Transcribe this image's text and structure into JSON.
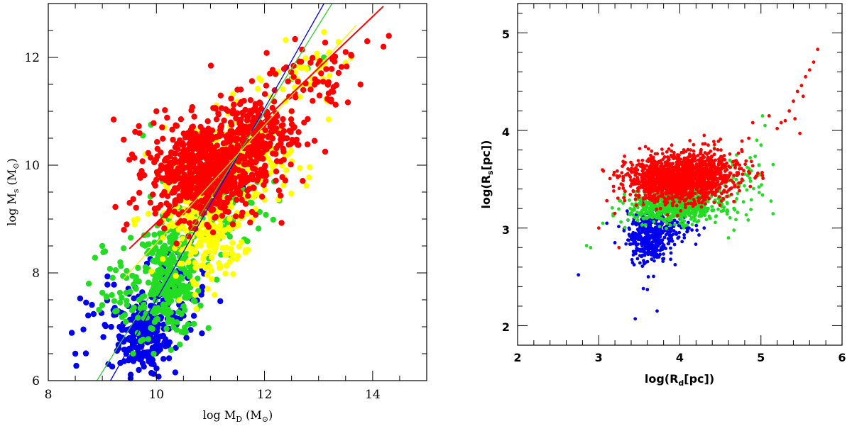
{
  "colors": {
    "red": "#ff0000",
    "yellow": "#ffff00",
    "green": "#22dd22",
    "blue": "#0000ee",
    "fit_green": "#33cc33",
    "fit_yellow": "#ffee00"
  },
  "chart_data": [
    {
      "type": "scatter",
      "title": "",
      "xlabel": "log M_D (M_⊙)",
      "xlabel_parts": {
        "pre": "log M",
        "sub": "D",
        "post": " (M",
        "sun": "⊙",
        "close": ")"
      },
      "ylabel": "log M_s (M_⊙)",
      "ylabel_parts": {
        "pre": "log M",
        "sub": "s",
        "post": " (M",
        "sun": "⊙",
        "close": ")"
      },
      "xlim": [
        8,
        15
      ],
      "ylim": [
        6,
        13
      ],
      "xticks": [
        8,
        10,
        12,
        14
      ],
      "xtick_labels": [
        "8",
        "10",
        "12",
        "14"
      ],
      "yticks": [
        6,
        8,
        10,
        12
      ],
      "ytick_labels": [
        "6",
        "8",
        "10",
        "12"
      ],
      "minor_step": 0.5,
      "series": [
        {
          "name": "blue",
          "color_key": "blue",
          "clusters": [
            {
              "cx": 9.75,
              "cy": 6.85,
              "sx": 0.22,
              "sy": 0.35,
              "n": 220
            },
            {
              "cx": 10.35,
              "cy": 7.6,
              "sx": 0.3,
              "sy": 0.45,
              "n": 80
            },
            {
              "cx": 9.0,
              "cy": 7.0,
              "sx": 0.35,
              "sy": 0.4,
              "n": 25
            }
          ],
          "points": [
            [
              8.5,
              6.5
            ],
            [
              8.65,
              6.95
            ],
            [
              8.7,
              7.45
            ],
            [
              9.95,
              6.3
            ],
            [
              11.6,
              9.6
            ],
            [
              12.3,
              10.4
            ],
            [
              11.8,
              10.0
            ]
          ]
        },
        {
          "name": "green",
          "color_key": "green",
          "clusters": [
            {
              "cx": 10.25,
              "cy": 7.9,
              "sx": 0.3,
              "sy": 0.55,
              "n": 300
            },
            {
              "cx": 11.2,
              "cy": 9.3,
              "sx": 0.45,
              "sy": 0.5,
              "n": 110
            },
            {
              "cx": 9.3,
              "cy": 7.6,
              "sx": 0.35,
              "sy": 0.45,
              "n": 45
            }
          ],
          "points": [
            [
              9.0,
              8.5
            ],
            [
              9.05,
              8.4
            ],
            [
              9.75,
              10.55
            ],
            [
              9.9,
              10.75
            ],
            [
              12.5,
              11.6
            ],
            [
              12.8,
              11.8
            ],
            [
              13.1,
              12.0
            ],
            [
              8.75,
              7.8
            ],
            [
              9.95,
              6.5
            ]
          ]
        },
        {
          "name": "yellow",
          "color_key": "yellow",
          "clusters": [
            {
              "cx": 10.9,
              "cy": 8.9,
              "sx": 0.35,
              "sy": 0.5,
              "n": 300
            },
            {
              "cx": 11.6,
              "cy": 10.1,
              "sx": 0.45,
              "sy": 0.45,
              "n": 180
            },
            {
              "cx": 12.8,
              "cy": 11.6,
              "sx": 0.35,
              "sy": 0.3,
              "n": 40
            }
          ],
          "points": [
            [
              9.6,
              8.9
            ],
            [
              9.65,
              9.0
            ],
            [
              10.15,
              10.7
            ],
            [
              9.8,
              10.2
            ],
            [
              13.6,
              12.0
            ],
            [
              13.5,
              11.9
            ],
            [
              12.5,
              11.0
            ]
          ]
        },
        {
          "name": "red",
          "color_key": "red",
          "clusters": [
            {
              "cx": 10.9,
              "cy": 9.9,
              "sx": 0.5,
              "sy": 0.45,
              "n": 700
            },
            {
              "cx": 11.8,
              "cy": 10.6,
              "sx": 0.4,
              "sy": 0.35,
              "n": 220
            },
            {
              "cx": 12.9,
              "cy": 11.6,
              "sx": 0.5,
              "sy": 0.35,
              "n": 60
            }
          ],
          "points": [
            [
              9.55,
              10.2
            ],
            [
              9.5,
              10.1
            ],
            [
              9.45,
              8.9
            ],
            [
              9.4,
              8.8
            ],
            [
              14.3,
              12.4
            ],
            [
              14.2,
              12.2
            ],
            [
              13.9,
              12.3
            ],
            [
              13.5,
              12.1
            ],
            [
              13.6,
              12.05
            ],
            [
              10.0,
              11.0
            ],
            [
              10.7,
              10.9
            ],
            [
              10.2,
              9.1
            ],
            [
              11.5,
              11.4
            ],
            [
              12.1,
              11.7
            ]
          ]
        }
      ],
      "fit_lines": [
        {
          "name": "blue fit",
          "color_key": "blue",
          "x": [
            9.15,
            13.1
          ],
          "y": [
            6.0,
            13.0
          ]
        },
        {
          "name": "green fit",
          "color_key": "fit_green",
          "x": [
            8.9,
            13.25
          ],
          "y": [
            6.0,
            13.0
          ]
        },
        {
          "name": "yellow fit",
          "color_key": "fit_yellow",
          "x": [
            9.4,
            13.7
          ],
          "y": [
            7.9,
            12.6
          ]
        },
        {
          "name": "red fit",
          "color_key": "red",
          "x": [
            9.5,
            14.2
          ],
          "y": [
            8.45,
            12.95
          ]
        }
      ]
    },
    {
      "type": "scatter",
      "title": "",
      "xlabel": "log(R_d[pc])",
      "xlabel_parts": {
        "pre": "log(R",
        "sub": "d",
        "post": "[pc])"
      },
      "ylabel": "log(R_s[pc])",
      "ylabel_parts": {
        "pre": "log(R",
        "sub": "s",
        "post": "[pc])"
      },
      "xlim": [
        2,
        6
      ],
      "ylim": [
        1.8,
        5.3
      ],
      "xticks": [
        2,
        3,
        4,
        5,
        6
      ],
      "xtick_labels": [
        "2",
        "3",
        "4",
        "5",
        "6"
      ],
      "yticks": [
        2,
        3,
        4,
        5
      ],
      "ytick_labels": [
        "2",
        "3",
        "4",
        "5"
      ],
      "minor_step": 0.2,
      "series": [
        {
          "name": "blue",
          "color_key": "blue",
          "clusters": [
            {
              "cx": 3.6,
              "cy": 2.9,
              "sx": 0.12,
              "sy": 0.13,
              "n": 350
            },
            {
              "cx": 3.85,
              "cy": 3.0,
              "sx": 0.15,
              "sy": 0.12,
              "n": 120
            }
          ],
          "points": [
            [
              2.75,
              2.52
            ],
            [
              3.45,
              2.07
            ],
            [
              3.72,
              2.15
            ],
            [
              3.55,
              2.38
            ],
            [
              3.6,
              2.37
            ],
            [
              3.2,
              2.85
            ],
            [
              3.1,
              3.05
            ],
            [
              4.15,
              2.98
            ],
            [
              4.3,
              3.0
            ]
          ]
        },
        {
          "name": "green",
          "color_key": "green",
          "clusters": [
            {
              "cx": 3.95,
              "cy": 3.22,
              "sx": 0.28,
              "sy": 0.08,
              "n": 700
            },
            {
              "cx": 4.55,
              "cy": 3.45,
              "sx": 0.25,
              "sy": 0.15,
              "n": 100
            }
          ],
          "points": [
            [
              2.9,
              2.8
            ],
            [
              2.85,
              2.82
            ],
            [
              3.05,
              3.05
            ],
            [
              5.0,
              3.85
            ],
            [
              5.05,
              4.05
            ],
            [
              5.02,
              4.15
            ],
            [
              5.15,
              3.65
            ],
            [
              4.95,
              3.9
            ],
            [
              4.7,
              3.3
            ],
            [
              4.6,
              2.9
            ]
          ]
        },
        {
          "name": "red",
          "color_key": "red",
          "clusters": [
            {
              "cx": 3.95,
              "cy": 3.5,
              "sx": 0.3,
              "sy": 0.11,
              "n": 1400
            },
            {
              "cx": 4.4,
              "cy": 3.6,
              "sx": 0.25,
              "sy": 0.12,
              "n": 250
            }
          ],
          "points": [
            [
              5.7,
              4.83
            ],
            [
              5.65,
              4.7
            ],
            [
              5.6,
              4.62
            ],
            [
              5.55,
              4.55
            ],
            [
              5.5,
              4.46
            ],
            [
              5.45,
              4.4
            ],
            [
              5.52,
              4.35
            ],
            [
              5.4,
              4.3
            ],
            [
              5.35,
              4.2
            ],
            [
              5.42,
              4.12
            ],
            [
              5.48,
              3.97
            ],
            [
              5.3,
              4.1
            ],
            [
              5.25,
              4.08
            ],
            [
              5.1,
              4.15
            ],
            [
              5.2,
              4.02
            ],
            [
              4.9,
              4.08
            ],
            [
              4.85,
              3.92
            ],
            [
              4.3,
              3.95
            ],
            [
              4.35,
              3.85
            ],
            [
              3.9,
              3.85
            ],
            [
              3.1,
              3.28
            ],
            [
              3.2,
              3.15
            ],
            [
              3.0,
              3.0
            ],
            [
              3.25,
              2.8
            ]
          ]
        }
      ],
      "fit_lines": []
    }
  ]
}
